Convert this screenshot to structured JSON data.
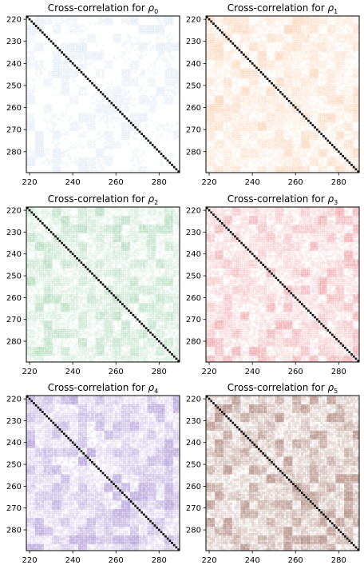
{
  "chart_data": [
    {
      "type": "heatmap",
      "title": "Cross-correlation for ",
      "title_symbol": "ρ",
      "title_subscript": "0",
      "colormap": "Blues",
      "color": "#3a78b8",
      "intensity": 0.1,
      "xlim": [
        219,
        290
      ],
      "ylim": [
        219,
        290
      ],
      "xticks": [
        220,
        240,
        260,
        280
      ],
      "yticks": [
        220,
        230,
        240,
        250,
        260,
        270,
        280
      ],
      "diagonal": "black"
    },
    {
      "type": "heatmap",
      "title": "Cross-correlation for ",
      "title_symbol": "ρ",
      "title_subscript": "1",
      "colormap": "Oranges",
      "color": "#f08a3a",
      "intensity": 0.26,
      "xlim": [
        219,
        290
      ],
      "ylim": [
        219,
        290
      ],
      "xticks": [
        220,
        240,
        260,
        280
      ],
      "yticks": [
        220,
        230,
        240,
        250,
        260,
        270,
        280
      ],
      "diagonal": "black"
    },
    {
      "type": "heatmap",
      "title": "Cross-correlation for ",
      "title_symbol": "ρ",
      "title_subscript": "2",
      "colormap": "Greens",
      "color": "#3ea25a",
      "intensity": 0.3,
      "xlim": [
        219,
        290
      ],
      "ylim": [
        219,
        290
      ],
      "xticks": [
        220,
        240,
        260,
        280
      ],
      "yticks": [
        220,
        230,
        240,
        250,
        260,
        270,
        280
      ],
      "diagonal": "black"
    },
    {
      "type": "heatmap",
      "title": "Cross-correlation for ",
      "title_symbol": "ρ",
      "title_subscript": "3",
      "colormap": "Reds",
      "color": "#d8404a",
      "intensity": 0.34,
      "xlim": [
        219,
        290
      ],
      "ylim": [
        219,
        290
      ],
      "xticks": [
        220,
        240,
        260,
        280
      ],
      "yticks": [
        220,
        230,
        240,
        250,
        260,
        270,
        280
      ],
      "diagonal": "black"
    },
    {
      "type": "heatmap",
      "title": "Cross-correlation for ",
      "title_symbol": "ρ",
      "title_subscript": "4",
      "colormap": "Purples",
      "color": "#8a6cc4",
      "intensity": 0.5,
      "xlim": [
        219,
        290
      ],
      "ylim": [
        219,
        290
      ],
      "xticks": [
        220,
        240,
        260,
        280
      ],
      "yticks": [
        220,
        230,
        240,
        250,
        260,
        270,
        280
      ],
      "diagonal": "black"
    },
    {
      "type": "heatmap",
      "title": "Cross-correlation for ",
      "title_symbol": "ρ",
      "title_subscript": "5",
      "colormap": "pink_r",
      "color": "#9c6a5e",
      "intensity": 0.68,
      "xlim": [
        219,
        290
      ],
      "ylim": [
        219,
        290
      ],
      "xticks": [
        220,
        240,
        260,
        280
      ],
      "yticks": [
        220,
        230,
        240,
        250,
        260,
        270,
        280
      ],
      "diagonal": "black"
    }
  ]
}
